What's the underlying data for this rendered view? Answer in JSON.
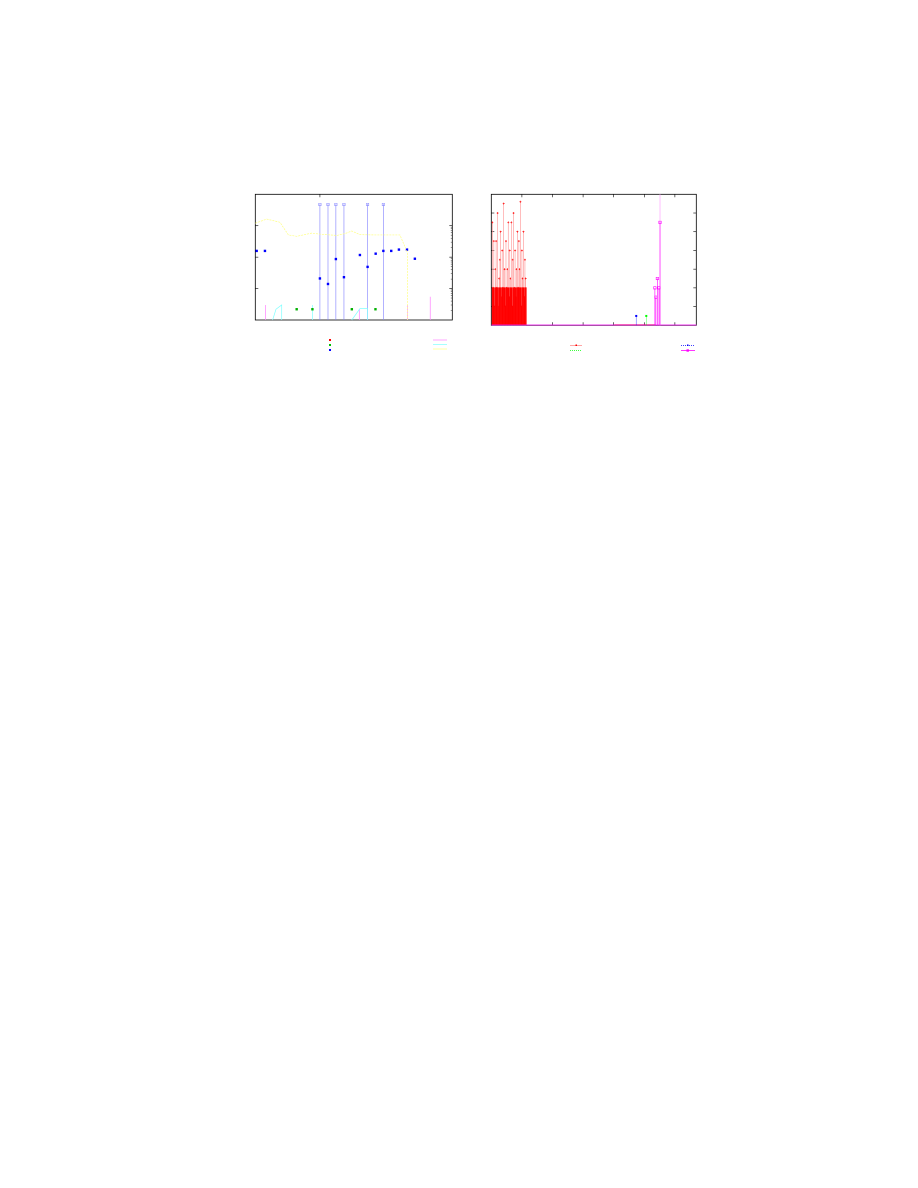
{
  "chart_data": [
    {
      "type": "scatter",
      "yscale": "log",
      "xlim": [
        0,
        100
      ],
      "ylim": [
        1,
        10000
      ],
      "grid": false,
      "legend": "bottom",
      "series": [
        {
          "color": "#0000ff",
          "marker": "square",
          "x": [
            0.7,
            4.9,
            32.8,
            36.9,
            40.9,
            45.0,
            53.1,
            57.0,
            61.1,
            65.0,
            69.0,
            72.9,
            77.0,
            81.0
          ],
          "y": [
            158,
            158,
            21,
            14,
            87,
            23,
            117,
            49,
            129,
            158,
            158,
            174,
            174,
            89
          ]
        },
        {
          "color": "#00b000",
          "marker": "square",
          "x": [
            21,
            29,
            49,
            61
          ],
          "y": [
            2.2,
            2.2,
            2.2,
            2.2
          ]
        },
        {
          "color": "#ffff80",
          "type": "line",
          "x": [
            0,
            5.8,
            12.5,
            16.8,
            21,
            28.6,
            32.8,
            41.3,
            45.5,
            49,
            53.1,
            60,
            73.4,
            77.2,
            77.2
          ],
          "y": [
            1200,
            1630,
            1290,
            510,
            460,
            580,
            540,
            490,
            560,
            680,
            520,
            510,
            510,
            140,
            1
          ]
        }
      ],
      "vlines_blue": [
        32.8,
        36.9,
        40.9,
        45.0,
        57.0,
        65.0
      ],
      "pink_lines": [
        {
          "x": 5.1,
          "y": 3.0
        },
        {
          "x": 52.8,
          "y": 2.2
        },
        {
          "x": 77.2,
          "y": 3.0
        },
        {
          "x": 88.8,
          "y": 5.5
        }
      ],
      "cyan_shapes": [
        {
          "x": [
            8.8,
            10.5,
            13.4,
            13.4
          ],
          "y": [
            1,
            2.2,
            3.0,
            1
          ]
        },
        {
          "x": [
            29,
            29
          ],
          "y": [
            1,
            3.0
          ]
        },
        {
          "x": [
            49,
            53.1,
            57,
            57
          ],
          "y": [
            1,
            2.3,
            2.3,
            1
          ]
        }
      ],
      "legend_entries": [
        {
          "color": "#ff0000",
          "style": "point"
        },
        {
          "color": "#00c000",
          "style": "point"
        },
        {
          "color": "#0000ff",
          "style": "point"
        },
        {
          "color": "#ff80ff",
          "style": "line"
        },
        {
          "color": "#80ffff",
          "style": "line"
        },
        {
          "color": "#ffff80",
          "style": "line"
        }
      ]
    },
    {
      "type": "bar",
      "xlim": [
        0,
        100
      ],
      "ylim": [
        0,
        7
      ],
      "grid": false,
      "legend": "bottom",
      "series": [
        {
          "color": "#ff0000",
          "marker": "plus",
          "x_start": 0.5,
          "x_step": 0.37,
          "values": [
            5.5,
            2,
            4.5,
            1,
            3,
            4.5,
            2,
            6,
            1,
            2.5,
            3.5,
            5,
            1.5,
            4,
            2,
            6.5,
            3,
            1,
            4.5,
            2,
            3,
            5.5,
            1.5,
            4,
            2.5,
            5.5,
            1,
            3.5,
            6,
            2,
            4,
            1.5,
            3,
            5,
            2,
            4.5,
            3,
            6.6,
            1,
            4,
            2.5,
            5,
            1.5,
            3.5,
            2.5
          ]
        },
        {
          "color": "#ff00ff",
          "marker": "square",
          "x": [
            79.8,
            80.3,
            81.0,
            81.8,
            82.3
          ],
          "values": [
            2.0,
            1.5,
            2.5,
            2.0,
            5.5
          ],
          "spike_x": 82.3,
          "spike_y": 7
        }
      ],
      "spikes": [
        {
          "color": "#0000ff",
          "x": 70.7,
          "y": 0.5
        },
        {
          "color": "#00ff00",
          "x": 75.6,
          "y": 0.5
        }
      ],
      "legend_entries": [
        {
          "color": "#ff0000",
          "style": "line-point"
        },
        {
          "color": "#00ff00",
          "style": "dotted"
        },
        {
          "color": "#0000ff",
          "style": "dotted-point"
        },
        {
          "color": "#ff00ff",
          "style": "line-square"
        }
      ]
    }
  ]
}
